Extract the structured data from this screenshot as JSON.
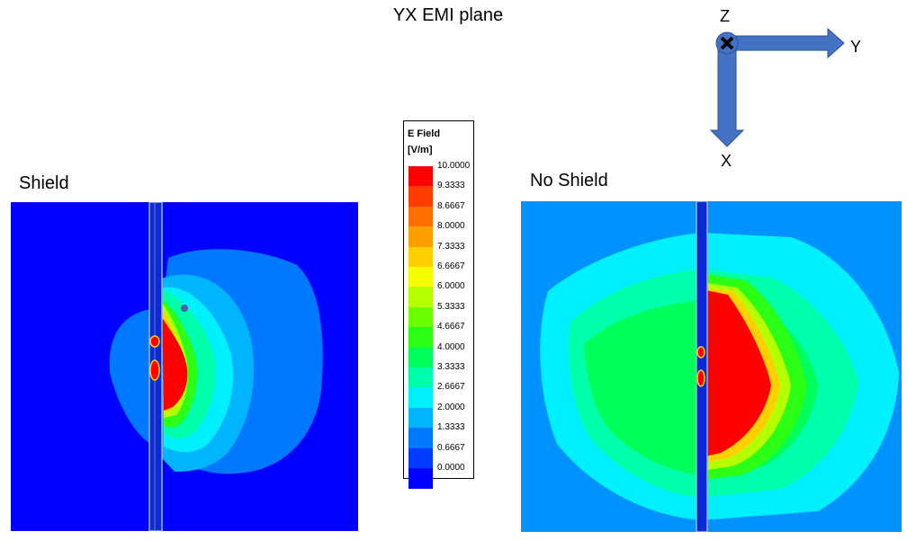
{
  "title": "YX EMI plane",
  "panels": {
    "left_label": "Shield",
    "right_label": "No Shield"
  },
  "legend": {
    "title_line1": "E Field",
    "title_line2": "[V/m]",
    "levels": [
      {
        "value": "10.0000",
        "color": "#ff0000"
      },
      {
        "value": "9.3333",
        "color": "#ff3c00"
      },
      {
        "value": "8.6667",
        "color": "#ff6e00"
      },
      {
        "value": "8.0000",
        "color": "#ffa000"
      },
      {
        "value": "7.3333",
        "color": "#ffd000"
      },
      {
        "value": "6.6667",
        "color": "#f5ff00"
      },
      {
        "value": "6.0000",
        "color": "#b4ff00"
      },
      {
        "value": "5.3333",
        "color": "#6cff00"
      },
      {
        "value": "4.6667",
        "color": "#2bff16"
      },
      {
        "value": "4.0000",
        "color": "#00ff5a"
      },
      {
        "value": "3.3333",
        "color": "#00ffaa"
      },
      {
        "value": "2.6667",
        "color": "#00f0ff"
      },
      {
        "value": "2.0000",
        "color": "#00b4ff"
      },
      {
        "value": "1.3333",
        "color": "#0078ff"
      },
      {
        "value": "0.6667",
        "color": "#003cff"
      },
      {
        "value": "0.0000",
        "color": "#0000ff"
      }
    ]
  },
  "axes": {
    "z": "Z",
    "y": "Y",
    "x": "X",
    "arrow_color": "#4472c4"
  }
}
